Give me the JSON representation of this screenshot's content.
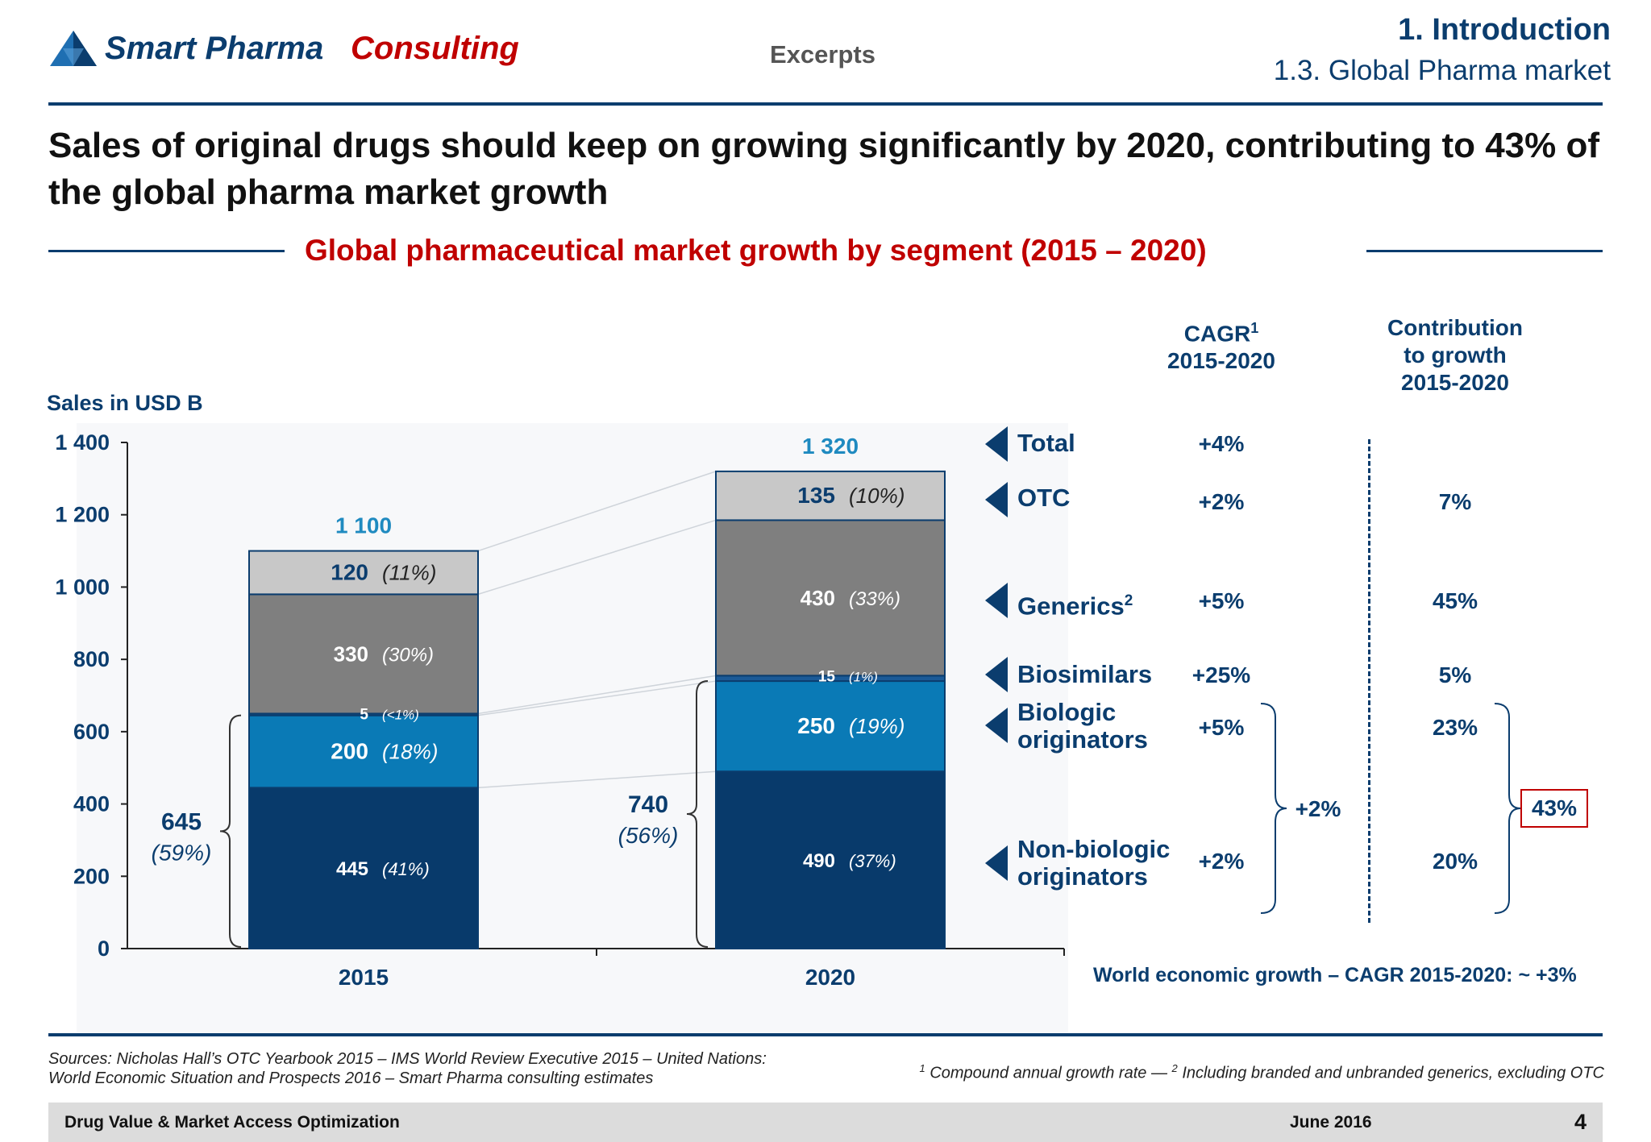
{
  "header": {
    "logo_part1": "Smart Pharma",
    "logo_part2": "Consulting",
    "excerpts": "Excerpts",
    "section": "1. Introduction",
    "subsection": "1.3. Global Pharma market"
  },
  "headline": "Sales of original drugs should keep on growing significantly by 2020, contributing to 43% of the global pharma market growth",
  "subtitle": "Global pharmaceutical market growth by segment (2015 – 2020)",
  "table": {
    "cagr_header_line1": "CAGR",
    "cagr_header_sup": "1",
    "cagr_header_line2": "2015-2020",
    "contrib_header_line1": "Contribution",
    "contrib_header_line2": "to growth",
    "contrib_header_line3": "2015-2020",
    "rows": [
      {
        "label": "Total",
        "cagr": "+4%",
        "contribution": ""
      },
      {
        "label": "OTC",
        "cagr": "+2%",
        "contribution": "7%"
      },
      {
        "label": "Generics",
        "sup": "2",
        "cagr": "+5%",
        "contribution": "45%"
      },
      {
        "label": "Biosimilars",
        "cagr": "+25%",
        "contribution": "5%"
      },
      {
        "label_line1": "Biologic",
        "label_line2": "originators",
        "cagr": "+5%",
        "contribution": "23%"
      },
      {
        "label_line1": "Non-biologic",
        "label_line2": "originators",
        "cagr": "+2%",
        "contribution": "20%"
      }
    ],
    "originators_cagr": "+2%",
    "originators_contribution": "43%",
    "world_growth": "World economic growth – CAGR 2015-2020: ~ +3%"
  },
  "chart_data": {
    "type": "bar",
    "stacked": true,
    "ylabel": "Sales in USD B",
    "ylim": [
      0,
      1400
    ],
    "yticks": [
      "0",
      "200",
      "400",
      "600",
      "800",
      "1 000",
      "1 200",
      "1 400"
    ],
    "categories": [
      "2015",
      "2020"
    ],
    "totals": [
      "1 100",
      "1 320"
    ],
    "series": [
      {
        "name": "Non-biologic originators",
        "values": [
          445,
          490
        ],
        "labels": [
          "445",
          "490"
        ],
        "shares": [
          "(41%)",
          "(37%)"
        ],
        "color": "#083a6b"
      },
      {
        "name": "Biologic originators",
        "values": [
          200,
          250
        ],
        "labels": [
          "200",
          "250"
        ],
        "shares": [
          "(18%)",
          "(19%)"
        ],
        "color": "#0a7ab6"
      },
      {
        "name": "Biosimilars",
        "values": [
          5,
          15
        ],
        "labels": [
          "5",
          "15"
        ],
        "shares": [
          "(<1%)",
          "(1%)"
        ],
        "color": "#1b5a97"
      },
      {
        "name": "Generics",
        "values": [
          330,
          430
        ],
        "labels": [
          "330",
          "430"
        ],
        "shares": [
          "(30%)",
          "(33%)"
        ],
        "color": "#7f7f7f"
      },
      {
        "name": "OTC",
        "values": [
          120,
          135
        ],
        "labels": [
          "120",
          "135"
        ],
        "shares": [
          "(11%)",
          "(10%)"
        ],
        "color": "#c8c8c8"
      }
    ],
    "originators_brackets": [
      {
        "value": "645",
        "share": "(59%)"
      },
      {
        "value": "740",
        "share": "(56%)"
      }
    ]
  },
  "footer": {
    "sources_line1": "Sources: Nicholas Hall’s OTC Yearbook 2015 – IMS World Review Executive 2015 – United Nations:",
    "sources_line2": "World Economic Situation and Prospects 2016 – Smart Pharma consulting estimates",
    "note_sup1": "1",
    "note_text1": "Compound annual growth rate —",
    "note_sup2": "2",
    "note_text2": "Including branded and unbranded generics, excluding OTC",
    "bar_left": "Drug Value & Market Access Optimization",
    "bar_date": "June 2016",
    "page": "4"
  }
}
